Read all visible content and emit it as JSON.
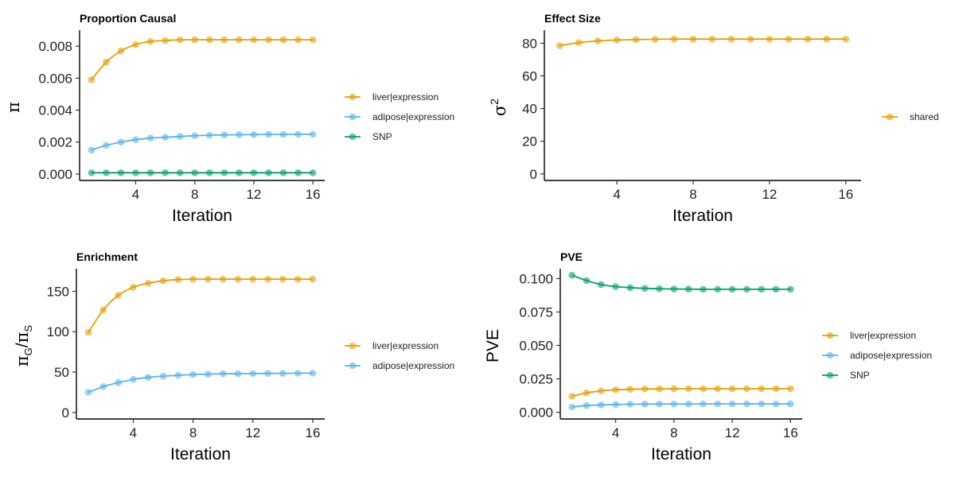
{
  "colors": {
    "liver|expression": "#E69F00",
    "adipose|expression": "#56B4E9",
    "SNP": "#009E73",
    "shared": "#E69F00"
  },
  "chart_data": [
    {
      "type": "line",
      "title": "Proportion Causal",
      "xlabel": "Iteration",
      "ylabel": "π",
      "x": [
        1,
        2,
        3,
        4,
        5,
        6,
        7,
        8,
        9,
        10,
        11,
        12,
        13,
        14,
        15,
        16
      ],
      "xticks": [
        4,
        8,
        12,
        16
      ],
      "xlim": [
        0.2,
        16.8
      ],
      "yticks": [
        0.0,
        0.002,
        0.004,
        0.006,
        0.008
      ],
      "ytick_labels": [
        "0.000",
        "0.002",
        "0.004",
        "0.006",
        "0.008"
      ],
      "ylim": [
        -0.0004,
        0.0088
      ],
      "legend": "right",
      "series": [
        {
          "name": "liver|expression",
          "values": [
            0.0059,
            0.007,
            0.0077,
            0.0081,
            0.0083,
            0.00835,
            0.0084,
            0.0084,
            0.0084,
            0.0084,
            0.0084,
            0.0084,
            0.0084,
            0.0084,
            0.0084,
            0.0084
          ]
        },
        {
          "name": "adipose|expression",
          "values": [
            0.0015,
            0.0018,
            0.002,
            0.00215,
            0.00225,
            0.0023,
            0.00235,
            0.0024,
            0.00243,
            0.00245,
            0.00246,
            0.00247,
            0.00248,
            0.00248,
            0.00249,
            0.00249
          ]
        },
        {
          "name": "SNP",
          "values": [
            8e-05,
            8e-05,
            8e-05,
            8e-05,
            8e-05,
            8e-05,
            8e-05,
            8e-05,
            8e-05,
            8e-05,
            8e-05,
            8e-05,
            8e-05,
            8e-05,
            8e-05,
            8e-05
          ]
        }
      ]
    },
    {
      "type": "line",
      "title": "Effect Size",
      "xlabel": "Iteration",
      "ylabel": "σ²",
      "x": [
        1,
        2,
        3,
        4,
        5,
        6,
        7,
        8,
        9,
        10,
        11,
        12,
        13,
        14,
        15,
        16
      ],
      "xticks": [
        4,
        8,
        12,
        16
      ],
      "xlim": [
        0.2,
        16.8
      ],
      "yticks": [
        0,
        20,
        40,
        60,
        80
      ],
      "ytick_labels": [
        "0",
        "20",
        "40",
        "60",
        "80"
      ],
      "ylim": [
        -4,
        86
      ],
      "legend": "right",
      "series": [
        {
          "name": "shared",
          "values": [
            78.5,
            80.3,
            81.4,
            81.9,
            82.2,
            82.4,
            82.5,
            82.5,
            82.5,
            82.5,
            82.5,
            82.5,
            82.5,
            82.5,
            82.5,
            82.5
          ]
        }
      ]
    },
    {
      "type": "line",
      "title": "Enrichment",
      "xlabel": "Iteration",
      "ylabel": "πG/πS",
      "x": [
        1,
        2,
        3,
        4,
        5,
        6,
        7,
        8,
        9,
        10,
        11,
        12,
        13,
        14,
        15,
        16
      ],
      "xticks": [
        4,
        8,
        12,
        16
      ],
      "xlim": [
        0.2,
        16.8
      ],
      "yticks": [
        0,
        50,
        100,
        150
      ],
      "ytick_labels": [
        "0",
        "50",
        "100",
        "150"
      ],
      "ylim": [
        -8,
        174
      ],
      "legend": "right",
      "series": [
        {
          "name": "liver|expression",
          "values": [
            99,
            127,
            145,
            155,
            160,
            163,
            164.5,
            165,
            165,
            165,
            165,
            165,
            165,
            165,
            165,
            165
          ]
        },
        {
          "name": "adipose|expression",
          "values": [
            25,
            32,
            37,
            41,
            43.5,
            45,
            46,
            47,
            47.5,
            48,
            48,
            48.2,
            48.4,
            48.5,
            48.6,
            48.7
          ]
        }
      ]
    },
    {
      "type": "line",
      "title": "PVE",
      "xlabel": "Iteration",
      "ylabel": "PVE",
      "x": [
        1,
        2,
        3,
        4,
        5,
        6,
        7,
        8,
        9,
        10,
        11,
        12,
        13,
        14,
        15,
        16
      ],
      "xticks": [
        4,
        8,
        12,
        16
      ],
      "xlim": [
        0.2,
        16.8
      ],
      "yticks": [
        0.0,
        0.025,
        0.05,
        0.075,
        0.1
      ],
      "ytick_labels": [
        "0.000",
        "0.025",
        "0.050",
        "0.075",
        "0.100"
      ],
      "ylim": [
        -0.005,
        0.105
      ],
      "legend": "right",
      "series": [
        {
          "name": "liver|expression",
          "values": [
            0.012,
            0.0145,
            0.016,
            0.0168,
            0.0172,
            0.0174,
            0.0175,
            0.0176,
            0.0176,
            0.0176,
            0.0176,
            0.0176,
            0.0176,
            0.0176,
            0.0176,
            0.0176
          ]
        },
        {
          "name": "adipose|expression",
          "values": [
            0.004,
            0.005,
            0.0055,
            0.0058,
            0.006,
            0.0061,
            0.0062,
            0.0062,
            0.0062,
            0.0063,
            0.0063,
            0.0063,
            0.0063,
            0.0063,
            0.0063,
            0.0063
          ]
        },
        {
          "name": "SNP",
          "values": [
            0.1025,
            0.0985,
            0.0955,
            0.094,
            0.0932,
            0.0927,
            0.0924,
            0.0922,
            0.0921,
            0.092,
            0.092,
            0.092,
            0.092,
            0.092,
            0.092,
            0.092
          ]
        }
      ]
    }
  ]
}
